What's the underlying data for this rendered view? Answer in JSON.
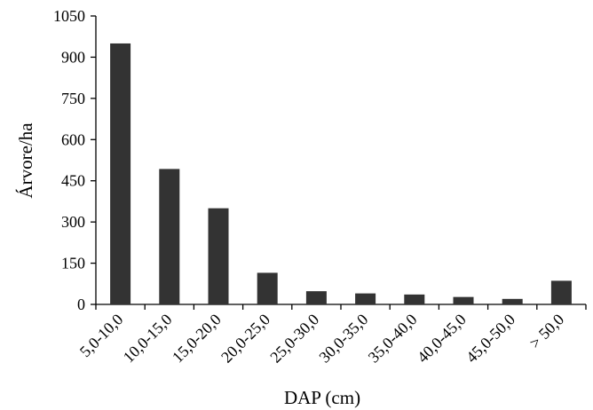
{
  "chart_data": {
    "type": "bar",
    "title": "",
    "xlabel": "DAP (cm)",
    "ylabel": "Árvore/ha",
    "categories": [
      "5,0-10,0",
      "10,0-15,0",
      "15,0-20,0",
      "20,0-25,0",
      "25,0-30,0",
      "30,0-35,0",
      "35,0-40,0",
      "40,0-45,0",
      "45,0-50,0",
      "> 50,0"
    ],
    "values": [
      950,
      493,
      350,
      115,
      48,
      40,
      36,
      27,
      20,
      86
    ],
    "ylim": [
      0,
      1050
    ],
    "yticks": [
      0,
      150,
      300,
      450,
      600,
      750,
      900,
      1050
    ],
    "grid": false,
    "bar_color": "#333333"
  }
}
